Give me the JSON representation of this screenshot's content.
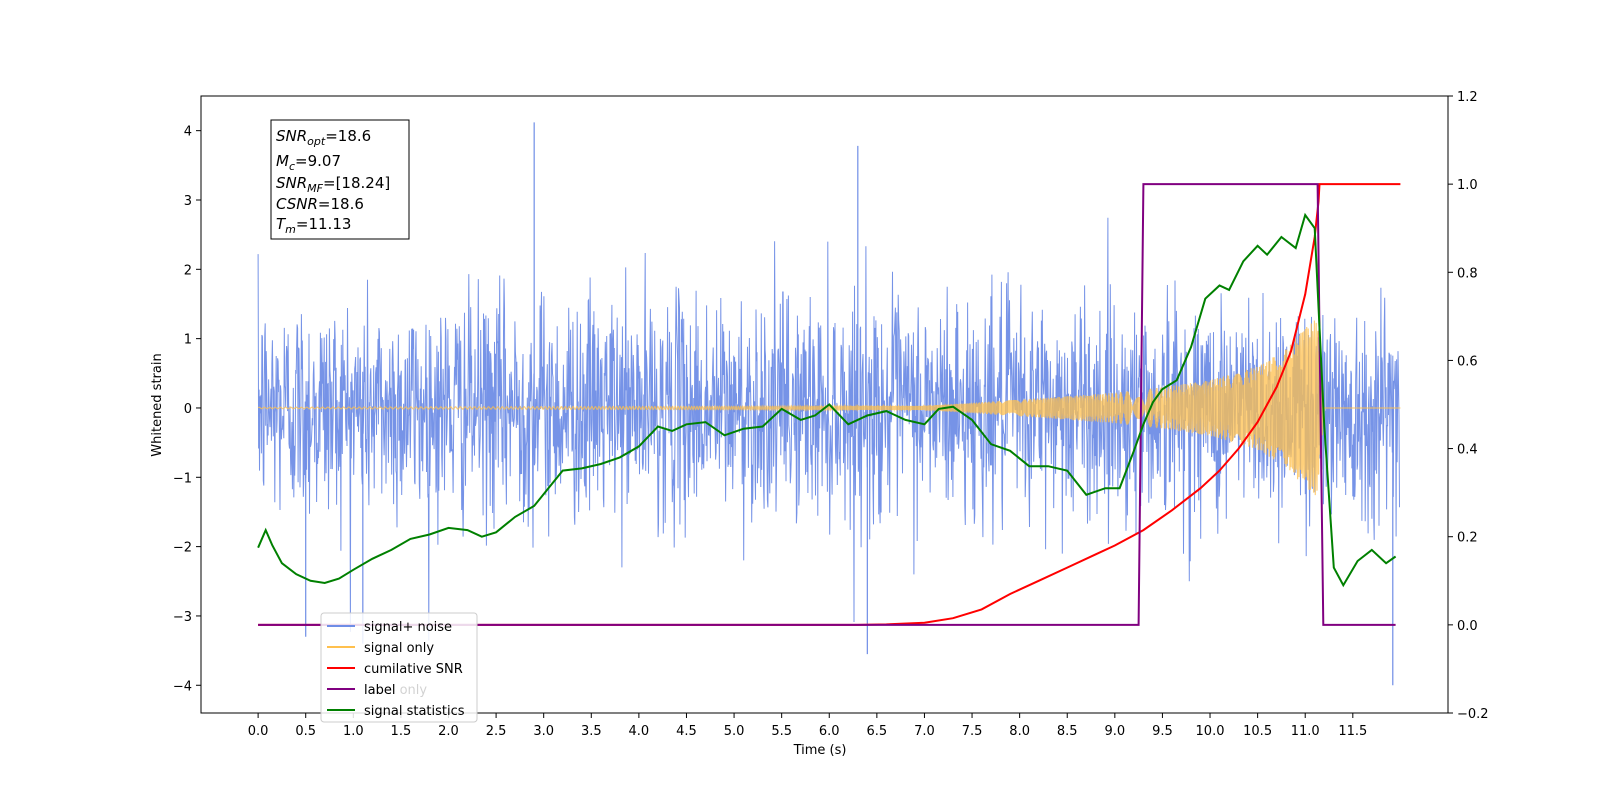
{
  "chart_data": {
    "type": "line",
    "xlabel": "Time (s)",
    "ylabel": "Whitened strain",
    "xlim": [
      -0.6,
      12.5
    ],
    "ylim": [
      -4.4,
      4.5
    ],
    "y2lim": [
      -0.2,
      1.2
    ],
    "x_ticks": [
      "0.0",
      "0.5",
      "1.0",
      "1.5",
      "2.0",
      "2.5",
      "3.0",
      "3.5",
      "4.0",
      "4.5",
      "5.0",
      "5.5",
      "6.0",
      "6.5",
      "7.0",
      "7.5",
      "8.0",
      "8.5",
      "9.0",
      "9.5",
      "10.0",
      "10.5",
      "11.0",
      "11.5"
    ],
    "y_ticks": [
      "4",
      "3",
      "2",
      "1",
      "0",
      "−1",
      "−2",
      "−3",
      "−4"
    ],
    "y2_ticks": [
      "1.2",
      "1.0",
      "0.8",
      "0.6",
      "0.4",
      "0.2",
      "0.0",
      "−0.2"
    ],
    "info_box": {
      "snr_opt": {
        "base": "SNR",
        "sub": "opt",
        "value": "=18.6"
      },
      "mc": {
        "base": "M",
        "sub": "c",
        "value": "=9.07"
      },
      "snr_mf": {
        "base": "SNR",
        "sub": "MF",
        "value": "=[18.24]"
      },
      "csnr": {
        "base": "CSNR",
        "value": "=18.6"
      },
      "tm": {
        "base": "T",
        "sub": "m",
        "value": "=11.13"
      }
    },
    "legend": {
      "placement": "lower-left",
      "entries": [
        {
          "label": "signal+ noise",
          "color": "#6f8de6"
        },
        {
          "label": "signal only",
          "color": "#ffc04d"
        },
        {
          "label": "cumilative SNR",
          "color": "#ff0000"
        },
        {
          "label": "label",
          "color": "#800080"
        },
        {
          "label": "signal statistics",
          "color": "#008000"
        }
      ],
      "ghost_labels": [
        "label only"
      ]
    },
    "series": [
      {
        "name": "signal+ noise",
        "axis": "left",
        "color": "#6f8de6",
        "description_noise": {
          "x_start": 0.0,
          "x_end": 11.99,
          "std": 0.8,
          "max": 4.12,
          "min": -4.0
        }
      },
      {
        "name": "signal only",
        "axis": "left",
        "color": "#ffc04d",
        "chirp_envelope": [
          [
            0.0,
            0.01
          ],
          [
            7.0,
            0.03
          ],
          [
            8.0,
            0.12
          ],
          [
            9.0,
            0.22
          ],
          [
            9.5,
            0.3
          ],
          [
            10.0,
            0.4
          ],
          [
            10.5,
            0.6
          ],
          [
            10.8,
            0.85
          ],
          [
            11.0,
            1.15
          ],
          [
            11.13,
            1.3
          ],
          [
            11.2,
            0.0
          ],
          [
            12.0,
            0.0
          ]
        ]
      },
      {
        "name": "cumilative SNR",
        "axis": "right",
        "color": "#ff0000",
        "points": [
          [
            0.0,
            0.0
          ],
          [
            6.3,
            0.0
          ],
          [
            6.6,
            0.001
          ],
          [
            7.0,
            0.005
          ],
          [
            7.3,
            0.015
          ],
          [
            7.6,
            0.035
          ],
          [
            7.9,
            0.07
          ],
          [
            8.2,
            0.1
          ],
          [
            8.5,
            0.13
          ],
          [
            8.8,
            0.16
          ],
          [
            9.0,
            0.18
          ],
          [
            9.3,
            0.215
          ],
          [
            9.6,
            0.26
          ],
          [
            9.9,
            0.31
          ],
          [
            10.1,
            0.35
          ],
          [
            10.3,
            0.4
          ],
          [
            10.5,
            0.46
          ],
          [
            10.7,
            0.54
          ],
          [
            10.85,
            0.62
          ],
          [
            11.0,
            0.75
          ],
          [
            11.1,
            0.88
          ],
          [
            11.14,
            0.96
          ],
          [
            11.15,
            1.0
          ],
          [
            12.0,
            1.0
          ]
        ]
      },
      {
        "name": "label",
        "axis": "right",
        "color": "#800080",
        "points": [
          [
            0.0,
            0.0
          ],
          [
            9.25,
            0.0
          ],
          [
            9.3,
            1.0
          ],
          [
            11.13,
            1.0
          ],
          [
            11.19,
            0.0
          ],
          [
            11.95,
            0.0
          ]
        ]
      },
      {
        "name": "signal statistics",
        "axis": "right",
        "color": "#008000",
        "points": [
          [
            0.0,
            0.175
          ],
          [
            0.08,
            0.215
          ],
          [
            0.15,
            0.18
          ],
          [
            0.25,
            0.14
          ],
          [
            0.4,
            0.115
          ],
          [
            0.55,
            0.1
          ],
          [
            0.7,
            0.095
          ],
          [
            0.85,
            0.105
          ],
          [
            1.0,
            0.125
          ],
          [
            1.2,
            0.15
          ],
          [
            1.4,
            0.17
          ],
          [
            1.6,
            0.195
          ],
          [
            1.8,
            0.205
          ],
          [
            2.0,
            0.22
          ],
          [
            2.2,
            0.215
          ],
          [
            2.35,
            0.2
          ],
          [
            2.5,
            0.21
          ],
          [
            2.7,
            0.245
          ],
          [
            2.9,
            0.27
          ],
          [
            3.05,
            0.31
          ],
          [
            3.2,
            0.35
          ],
          [
            3.4,
            0.355
          ],
          [
            3.6,
            0.365
          ],
          [
            3.8,
            0.38
          ],
          [
            4.0,
            0.405
          ],
          [
            4.2,
            0.45
          ],
          [
            4.35,
            0.44
          ],
          [
            4.5,
            0.455
          ],
          [
            4.7,
            0.46
          ],
          [
            4.9,
            0.43
          ],
          [
            5.1,
            0.445
          ],
          [
            5.3,
            0.45
          ],
          [
            5.5,
            0.49
          ],
          [
            5.7,
            0.465
          ],
          [
            5.85,
            0.475
          ],
          [
            6.0,
            0.5
          ],
          [
            6.2,
            0.455
          ],
          [
            6.4,
            0.475
          ],
          [
            6.6,
            0.485
          ],
          [
            6.8,
            0.465
          ],
          [
            7.0,
            0.455
          ],
          [
            7.15,
            0.49
          ],
          [
            7.3,
            0.495
          ],
          [
            7.5,
            0.465
          ],
          [
            7.7,
            0.41
          ],
          [
            7.9,
            0.395
          ],
          [
            8.1,
            0.36
          ],
          [
            8.3,
            0.36
          ],
          [
            8.5,
            0.35
          ],
          [
            8.7,
            0.295
          ],
          [
            8.9,
            0.31
          ],
          [
            9.05,
            0.31
          ],
          [
            9.2,
            0.395
          ],
          [
            9.3,
            0.455
          ],
          [
            9.4,
            0.505
          ],
          [
            9.5,
            0.535
          ],
          [
            9.65,
            0.555
          ],
          [
            9.8,
            0.63
          ],
          [
            9.95,
            0.74
          ],
          [
            10.1,
            0.77
          ],
          [
            10.2,
            0.76
          ],
          [
            10.35,
            0.825
          ],
          [
            10.5,
            0.86
          ],
          [
            10.6,
            0.84
          ],
          [
            10.75,
            0.88
          ],
          [
            10.9,
            0.855
          ],
          [
            11.0,
            0.93
          ],
          [
            11.1,
            0.9
          ],
          [
            11.2,
            0.45
          ],
          [
            11.3,
            0.13
          ],
          [
            11.4,
            0.09
          ],
          [
            11.55,
            0.145
          ],
          [
            11.7,
            0.17
          ],
          [
            11.85,
            0.14
          ],
          [
            11.95,
            0.155
          ]
        ]
      }
    ]
  }
}
